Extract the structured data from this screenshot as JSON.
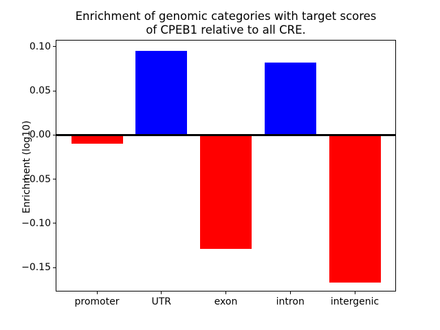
{
  "chart_data": {
    "type": "bar",
    "title": "Enrichment of genomic categories with target scores\nof CPEB1 relative to all CRE.",
    "xlabel": "",
    "ylabel": "Enrichment (log10)",
    "categories": [
      "promoter",
      "UTR",
      "exon",
      "intron",
      "intergenic"
    ],
    "values": [
      -0.01,
      0.095,
      -0.129,
      0.082,
      -0.167
    ],
    "series": [
      {
        "name": "Enrichment (log10)",
        "values": [
          -0.01,
          0.095,
          -0.129,
          0.082,
          -0.167
        ]
      }
    ],
    "yticks": [
      0.1,
      0.05,
      0.0,
      -0.05,
      -0.1,
      -0.15
    ],
    "ytick_labels": [
      "0.10",
      "0.05",
      "0.00",
      "−0.05",
      "−0.10",
      "−0.15"
    ],
    "ylim": [
      -0.177,
      0.108
    ],
    "xlim": [
      -0.64,
      4.64
    ],
    "bar_width": 0.8,
    "grid": false,
    "legend": null,
    "zero_line": true,
    "colors": {
      "positive": "#0000ff",
      "negative": "#ff0000",
      "zero_line": "#000000",
      "spine": "#000000",
      "text": "#000000",
      "background": "#ffffff"
    }
  }
}
